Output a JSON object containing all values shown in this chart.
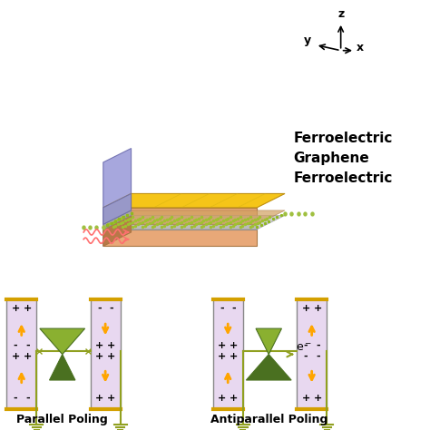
{
  "bg_color": "#ffffff",
  "fig_size": [
    4.74,
    4.74
  ],
  "dpi": 100,
  "top_panel": {
    "layer_colors": {
      "top_fe": "#F5C518",
      "graphene": "#C0C0C0",
      "bottom_fe": "#D8A0D0",
      "graphene_hex": "#90C040",
      "side_left_fe": "#9090D0",
      "side_bottom_fe": "#E0A060"
    },
    "labels": [
      "Ferroelectric",
      "Graphene",
      "Ferroelectric"
    ],
    "wave_color": "#FF8080"
  },
  "bottom_panel": {
    "plate_color": "#E8D8F0",
    "plate_border": "#D4A000",
    "arrow_color": "#FFA500",
    "wire_color": "#90A020",
    "label_parallel": "Parallel Poling",
    "label_antiparallel": "Antiparallel Poling"
  }
}
